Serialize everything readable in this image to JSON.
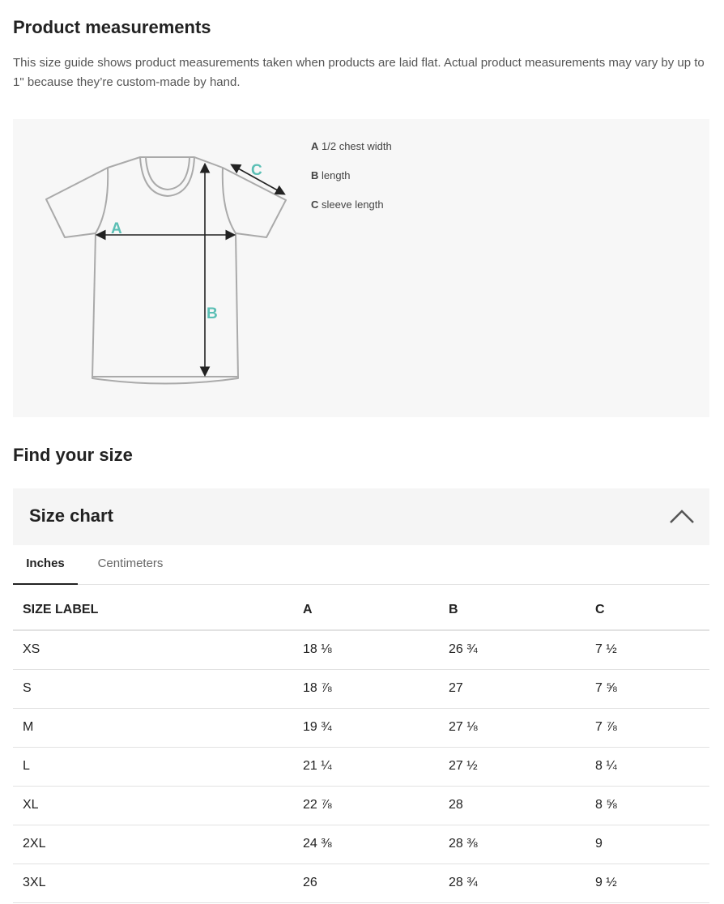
{
  "measurements": {
    "title": "Product measurements",
    "description": "This size guide shows product measurements taken when products are laid flat. Actual product measurements may vary by up to 1\" because they’re custom-made by hand.",
    "diagram_labels": [
      "A",
      "B",
      "C"
    ],
    "legend": [
      {
        "key": "A",
        "text": "1/2 chest width"
      },
      {
        "key": "B",
        "text": "length"
      },
      {
        "key": "C",
        "text": "sleeve length"
      }
    ],
    "accent_color": "#5bbfb5"
  },
  "find_size": {
    "title": "Find your size"
  },
  "size_chart": {
    "title": "Size chart",
    "toggle_icon": "chevron-up-icon",
    "tabs": [
      {
        "label": "Inches",
        "active": true
      },
      {
        "label": "Centimeters",
        "active": false
      }
    ],
    "headers": [
      "SIZE LABEL",
      "A",
      "B",
      "C"
    ],
    "rows": [
      [
        "XS",
        "18 ⅛",
        "26 ¾",
        "7 ½"
      ],
      [
        "S",
        "18 ⅞",
        "27",
        "7 ⅝"
      ],
      [
        "M",
        "19 ¾",
        "27 ⅛",
        "7 ⅞"
      ],
      [
        "L",
        "21 ¼",
        "27 ½",
        "8 ¼"
      ],
      [
        "XL",
        "22 ⅞",
        "28",
        "8 ⅝"
      ],
      [
        "2XL",
        "24 ⅜",
        "28 ⅜",
        "9"
      ],
      [
        "3XL",
        "26",
        "28 ¾",
        "9 ½"
      ]
    ]
  }
}
